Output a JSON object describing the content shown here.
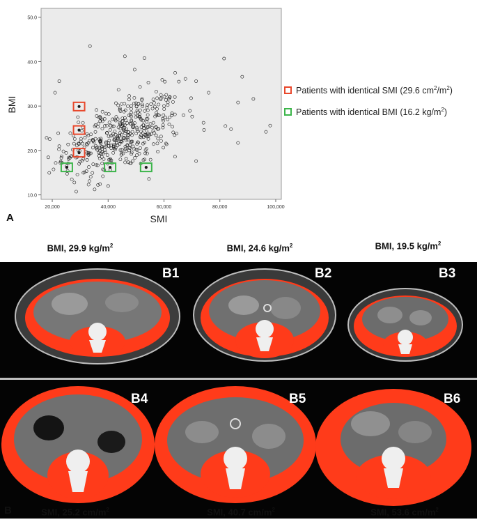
{
  "chart_data": {
    "type": "scatter",
    "xlabel": "SMI",
    "ylabel": "BMI",
    "xlim": [
      16000,
      102000
    ],
    "ylim": [
      9,
      52
    ],
    "xticks": [
      "20,000",
      "40,000",
      "60,000",
      "80,000",
      "100,000"
    ],
    "xtick_values": [
      20000,
      40000,
      60000,
      80000,
      100000
    ],
    "yticks": [
      "10.0",
      "20.0",
      "30.0",
      "40.0",
      "50.0"
    ],
    "ytick_values": [
      10,
      20,
      30,
      40,
      50
    ],
    "n_points_approx": 450,
    "point_cloud": {
      "mean_smi": 45000,
      "sd_smi": 10500,
      "mean_bmi": 23.5,
      "sd_bmi": 4.6,
      "corr": 0.45
    },
    "outliers": [
      {
        "x": 21000,
        "y": 33.0
      },
      {
        "x": 22500,
        "y": 35.6
      },
      {
        "x": 33500,
        "y": 43.5
      },
      {
        "x": 46000,
        "y": 41.2
      },
      {
        "x": 53000,
        "y": 40.8
      },
      {
        "x": 49500,
        "y": 38.2
      },
      {
        "x": 64000,
        "y": 37.5
      },
      {
        "x": 71500,
        "y": 35.6
      },
      {
        "x": 81500,
        "y": 40.7
      },
      {
        "x": 88000,
        "y": 36.6
      },
      {
        "x": 86500,
        "y": 30.8
      },
      {
        "x": 92000,
        "y": 31.6
      },
      {
        "x": 76000,
        "y": 33.0
      },
      {
        "x": 96500,
        "y": 24.2
      },
      {
        "x": 98000,
        "y": 25.6
      },
      {
        "x": 86500,
        "y": 21.7
      },
      {
        "x": 84000,
        "y": 24.8
      },
      {
        "x": 82000,
        "y": 25.5
      },
      {
        "x": 71500,
        "y": 17.6
      },
      {
        "x": 40000,
        "y": 12.0
      },
      {
        "x": 27000,
        "y": 13.5
      },
      {
        "x": 24000,
        "y": 19.8
      },
      {
        "x": 23500,
        "y": 17.2
      },
      {
        "x": 25500,
        "y": 15.4
      },
      {
        "x": 33000,
        "y": 12.3
      }
    ],
    "highlighted": [
      {
        "group": "smi",
        "x": 29600,
        "y": 29.9
      },
      {
        "group": "smi",
        "x": 29600,
        "y": 24.6
      },
      {
        "group": "smi",
        "x": 29600,
        "y": 19.5
      },
      {
        "group": "bmi",
        "x": 25200,
        "y": 16.2
      },
      {
        "group": "bmi",
        "x": 40700,
        "y": 16.2
      },
      {
        "group": "bmi",
        "x": 53600,
        "y": 16.2
      }
    ],
    "legend": [
      {
        "label_main": "Patients with identical SMI (29.6 cm",
        "sup1": "2",
        "mid": "/m",
        "sup2": "2",
        "label_end": ")",
        "color": "#e8472b"
      },
      {
        "label_main": "Patients with identical BMI (16.2 kg/m",
        "sup1": "2",
        "mid": "",
        "sup2": "",
        "label_end": ")",
        "color": "#3cb54a"
      }
    ]
  },
  "panel_a_label": "A",
  "panel_b_label": "B",
  "top_captions": [
    {
      "prefix": "BMI, 29.9 kg/m",
      "sup": "2"
    },
    {
      "prefix": "BMI, 24.6 kg/m",
      "sup": "2"
    },
    {
      "prefix": "BMI, 19.5 kg/m",
      "sup": "2"
    }
  ],
  "bottom_captions": [
    {
      "prefix": "SMI, 25.2 cm/m",
      "sup": "2"
    },
    {
      "prefix": "SMI, 40.7 cm/m",
      "sup": "2"
    },
    {
      "prefix": "SMI, 53.6 cm/m",
      "sup": "2"
    }
  ],
  "ct_labels": [
    "B1",
    "B2",
    "B3",
    "B4",
    "B5",
    "B6"
  ],
  "colors": {
    "plot_bg": "#ebebeb",
    "muscle": "#ff3b1a",
    "ct_bg": "#040404",
    "fat": "#5a5a5a",
    "organ": "#7c7c7c",
    "bone": "#f2f2f2",
    "smi_box": "#e8472b",
    "bmi_box": "#3cb54a"
  }
}
